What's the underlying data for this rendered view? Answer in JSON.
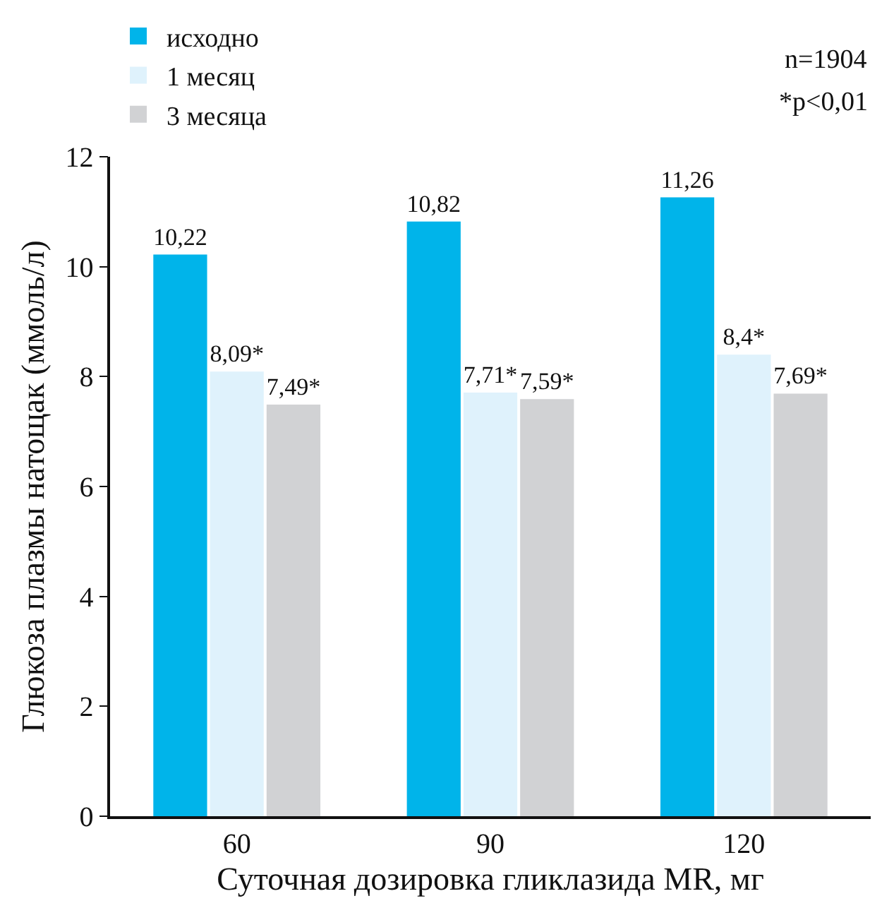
{
  "chart_data": {
    "type": "bar",
    "xlabel": "Суточная дозировка гликлазида MR, мг",
    "ylabel": "Глюкоза плазмы натощак (ммоль/л)",
    "categories": [
      "60",
      "90",
      "120"
    ],
    "series": [
      {
        "name": "исходно",
        "color": "#00b4ea",
        "values": [
          10.22,
          10.82,
          11.26
        ],
        "value_labels": [
          "10,22",
          "10,82",
          "11,26"
        ]
      },
      {
        "name": "1 месяц",
        "color": "#dff2fc",
        "values": [
          8.09,
          7.71,
          8.4
        ],
        "value_labels": [
          "8,09*",
          "7,71*",
          "8,4*"
        ]
      },
      {
        "name": "3 месяца",
        "color": "#d1d2d4",
        "values": [
          7.49,
          7.59,
          7.69
        ],
        "value_labels": [
          "7,49*",
          "7,59*",
          "7,69*"
        ]
      }
    ],
    "ylim": [
      0,
      12
    ],
    "yticks": [
      0,
      2,
      4,
      6,
      8,
      10,
      12
    ],
    "grid": false,
    "legend": "top left",
    "annotations": [
      "n=1904",
      "*p<0,01"
    ]
  }
}
